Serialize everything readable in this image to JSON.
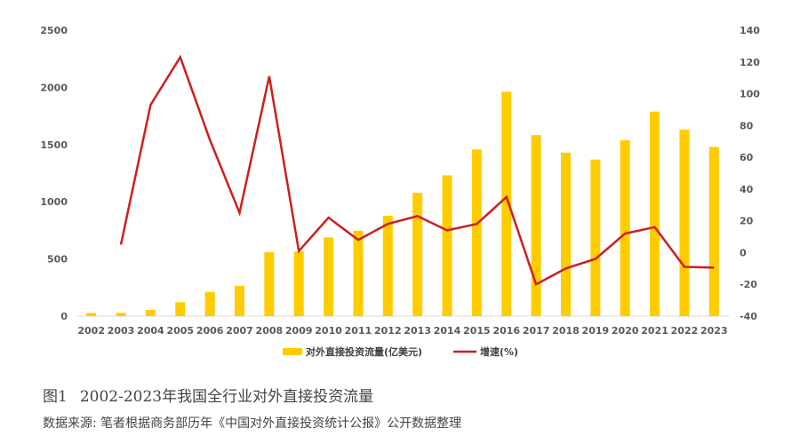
{
  "chart_data": {
    "type": "bar+line",
    "categories": [
      "2002",
      "2003",
      "2004",
      "2005",
      "2006",
      "2007",
      "2008",
      "2009",
      "2010",
      "2011",
      "2012",
      "2013",
      "2014",
      "2015",
      "2016",
      "2017",
      "2018",
      "2019",
      "2020",
      "2021",
      "2022",
      "2023"
    ],
    "series": [
      {
        "name": "对外直接投资流量(亿美元)",
        "type": "bar",
        "axis": "left",
        "color": "#FFCC00",
        "values": [
          27,
          29,
          55,
          122,
          212,
          265,
          559,
          565,
          688,
          747,
          878,
          1078,
          1231,
          1457,
          1962,
          1583,
          1430,
          1369,
          1537,
          1788,
          1631,
          1479
        ]
      },
      {
        "name": "增速(%)",
        "type": "line",
        "axis": "right",
        "color": "#CC1F1F",
        "values": [
          null,
          5,
          93,
          123,
          71,
          25,
          111,
          1,
          22,
          8,
          18,
          23,
          14,
          18,
          35,
          -20,
          -10,
          -4,
          12,
          16,
          -9,
          -9.5
        ]
      }
    ],
    "y_left": {
      "min": 0,
      "max": 2500,
      "ticks": [
        0,
        500,
        1000,
        1500,
        2000,
        2500
      ]
    },
    "y_right": {
      "min": -40,
      "max": 140,
      "ticks": [
        -40,
        -20,
        0,
        20,
        40,
        60,
        80,
        100,
        120,
        140
      ]
    },
    "legend": [
      {
        "label": "对外直接投资流量(亿美元)",
        "kind": "bar",
        "color": "#FFCC00"
      },
      {
        "label": "增速(%)",
        "kind": "line",
        "color": "#CC1F1F"
      }
    ],
    "legend_position": "bottom-center",
    "grid": false
  },
  "caption": {
    "figure_number": "图1",
    "title": "2002-2023年我国全行业对外直接投资流量"
  },
  "source_note": "数据来源: 笔者根据商务部历年《中国对外直接投资统计公报》公开数据整理"
}
